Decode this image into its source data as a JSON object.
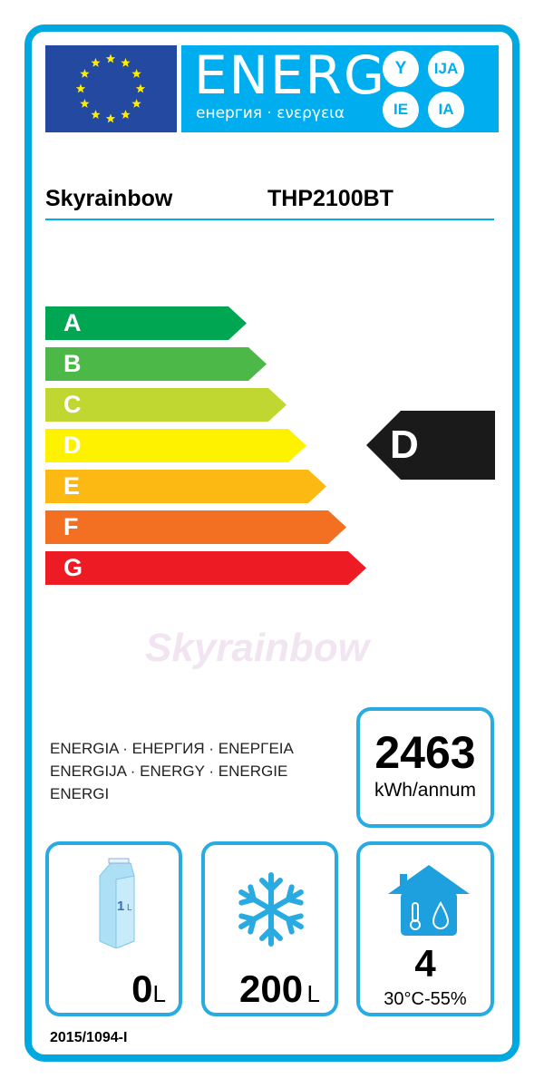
{
  "header": {
    "title": "ENERG",
    "subtitle": "енергия · ενεργεια",
    "suffixes": [
      "Y",
      "IJA",
      "IE",
      "IA"
    ],
    "flag": "eu-flag",
    "colors": {
      "frame": "#00a8e0",
      "header": "#00aeef",
      "flag": "#2349a0",
      "stars": "#ffed00"
    }
  },
  "supplier": "Skyrainbow",
  "model": "THP2100BT",
  "watermark": "Skyrainbow",
  "scale": [
    {
      "label": "A",
      "color": "#00a651"
    },
    {
      "label": "B",
      "color": "#4cb847"
    },
    {
      "label": "C",
      "color": "#bfd730"
    },
    {
      "label": "D",
      "color": "#fff200"
    },
    {
      "label": "E",
      "color": "#fdb913"
    },
    {
      "label": "F",
      "color": "#f36f21"
    },
    {
      "label": "G",
      "color": "#ed1c24"
    }
  ],
  "rating": "D",
  "energy_words": [
    "ENERGIA · ЕНЕРГИЯ · ΕΝΕΡΓΕΙΑ",
    "ENERGIJA · ENERGY · ENERGIE",
    "ENERGI"
  ],
  "consumption": {
    "value": "2463",
    "unit": "kWh/annum"
  },
  "chilled": {
    "icon": "milk-carton-icon",
    "carton_label": "1L",
    "value": "0",
    "unit": "L"
  },
  "frozen": {
    "icon": "snowflake-icon",
    "value": "200",
    "unit": "L"
  },
  "climate": {
    "icon": "house-climate-icon",
    "value": "4",
    "condition": "30°C-55%"
  },
  "regulation": "2015/1094-I"
}
